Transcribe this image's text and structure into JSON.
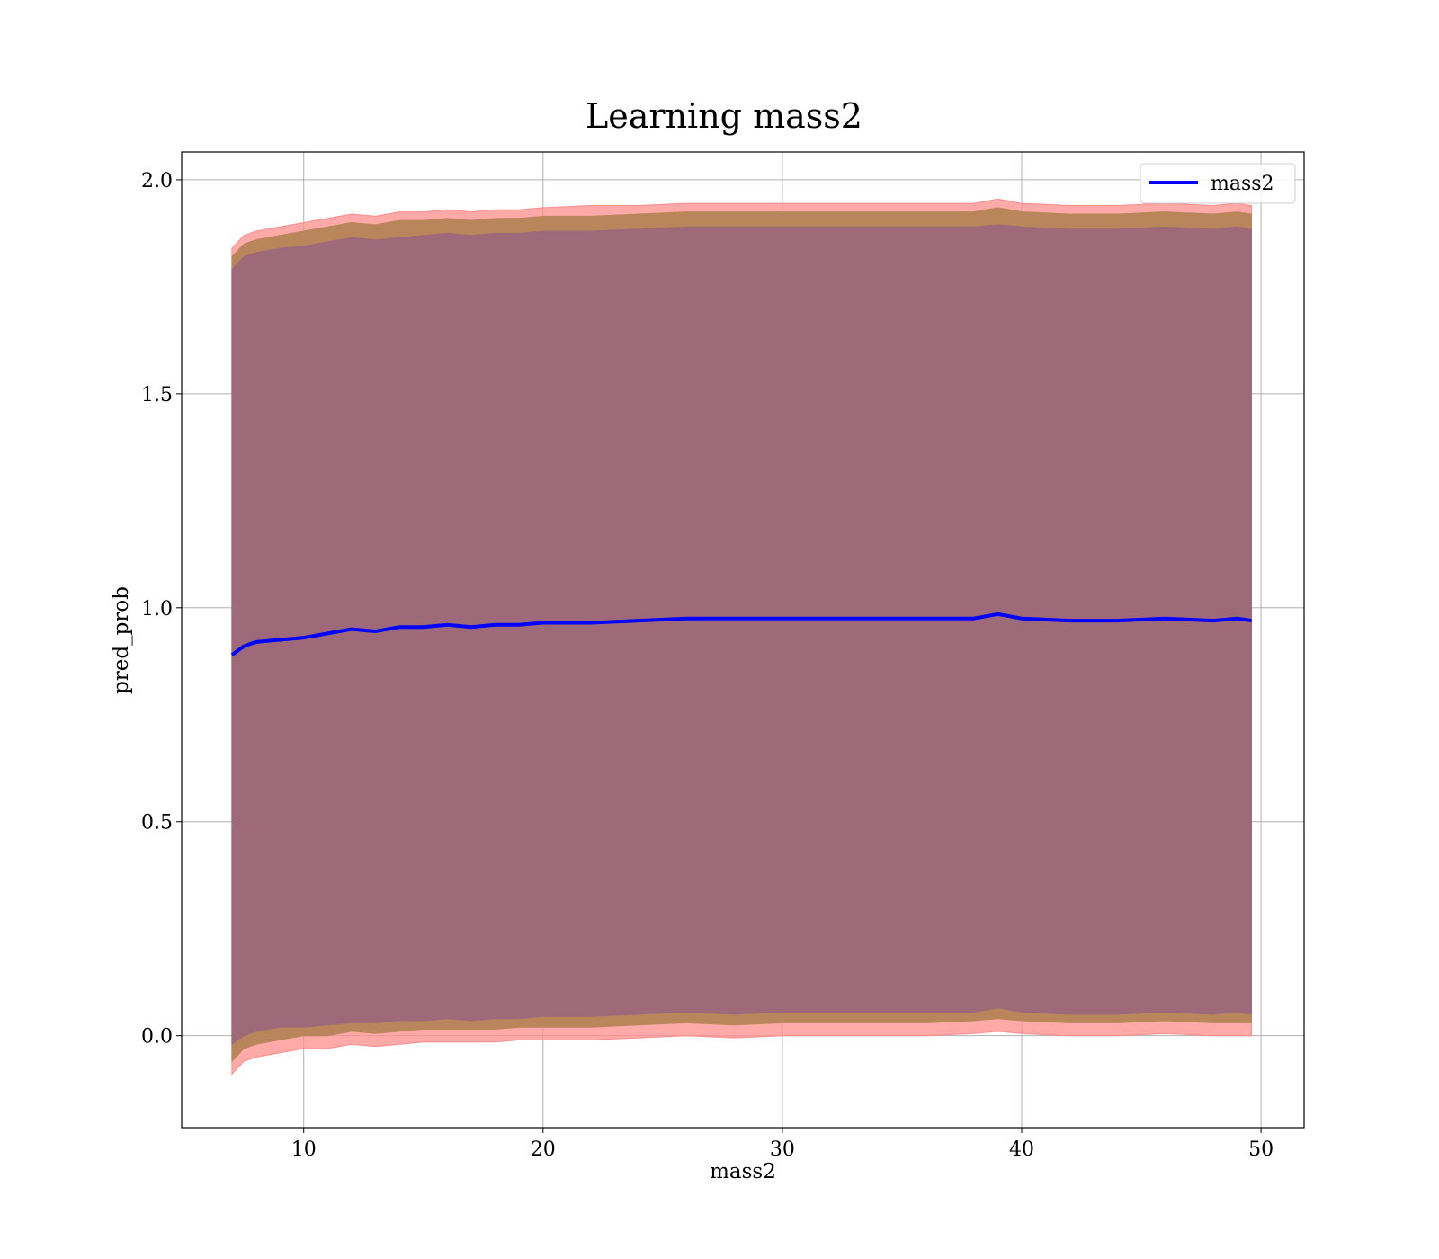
{
  "chart_data": {
    "type": "line",
    "title": "Learning mass2",
    "xlabel": "mass2",
    "ylabel": "pred_prob",
    "xlim": [
      4.9,
      51.8
    ],
    "ylim": [
      -0.215,
      2.065
    ],
    "xticks": [
      10,
      20,
      30,
      40,
      50
    ],
    "xtick_labels": [
      "10",
      "20",
      "30",
      "40",
      "50"
    ],
    "yticks": [
      0.0,
      0.5,
      1.0,
      1.5,
      2.0
    ],
    "ytick_labels": [
      "0.0",
      "0.5",
      "1.0",
      "1.5",
      "2.0"
    ],
    "grid": true,
    "legend": {
      "placement": "upper right",
      "entries": [
        "mass2"
      ]
    },
    "x": [
      7.0,
      7.5,
      8.0,
      9.0,
      10.0,
      11.0,
      12.0,
      13.0,
      14.0,
      15.0,
      16.0,
      17.0,
      18.0,
      19.0,
      20.0,
      22.0,
      24.0,
      26.0,
      28.0,
      30.0,
      32.0,
      34.0,
      36.0,
      38.0,
      39.0,
      40.0,
      42.0,
      44.0,
      46.0,
      48.0,
      49.0,
      49.6
    ],
    "series": [
      {
        "name": "mass2",
        "color": "#0000ff",
        "values": [
          0.89,
          0.91,
          0.92,
          0.925,
          0.93,
          0.94,
          0.95,
          0.945,
          0.955,
          0.955,
          0.96,
          0.955,
          0.96,
          0.96,
          0.965,
          0.965,
          0.97,
          0.975,
          0.975,
          0.975,
          0.975,
          0.975,
          0.975,
          0.975,
          0.985,
          0.975,
          0.97,
          0.97,
          0.975,
          0.97,
          0.975,
          0.97
        ]
      }
    ],
    "bands": [
      {
        "name": "outer band",
        "color": "#ff8c8c",
        "lower": [
          -0.09,
          -0.06,
          -0.05,
          -0.04,
          -0.03,
          -0.03,
          -0.02,
          -0.025,
          -0.02,
          -0.015,
          -0.015,
          -0.015,
          -0.015,
          -0.01,
          -0.01,
          -0.01,
          -0.005,
          0.0,
          -0.005,
          0.0,
          0.0,
          0.0,
          0.0,
          0.005,
          0.01,
          0.005,
          0.0,
          0.0,
          0.005,
          0.0,
          0.0,
          0.0
        ],
        "upper": [
          1.84,
          1.87,
          1.88,
          1.89,
          1.9,
          1.91,
          1.92,
          1.915,
          1.925,
          1.925,
          1.93,
          1.925,
          1.93,
          1.93,
          1.935,
          1.94,
          1.94,
          1.945,
          1.945,
          1.945,
          1.945,
          1.945,
          1.945,
          1.945,
          1.955,
          1.945,
          1.94,
          1.94,
          1.945,
          1.94,
          1.945,
          1.94
        ]
      },
      {
        "name": "middle band",
        "color": "#b8865a",
        "lower": [
          -0.06,
          -0.03,
          -0.02,
          -0.01,
          0.0,
          0.0,
          0.01,
          0.005,
          0.01,
          0.015,
          0.015,
          0.015,
          0.015,
          0.02,
          0.02,
          0.02,
          0.025,
          0.03,
          0.025,
          0.03,
          0.03,
          0.03,
          0.03,
          0.035,
          0.04,
          0.035,
          0.03,
          0.03,
          0.035,
          0.03,
          0.03,
          0.03
        ],
        "upper": [
          1.82,
          1.85,
          1.86,
          1.87,
          1.88,
          1.89,
          1.9,
          1.895,
          1.905,
          1.905,
          1.91,
          1.905,
          1.91,
          1.91,
          1.915,
          1.915,
          1.92,
          1.925,
          1.925,
          1.925,
          1.925,
          1.925,
          1.925,
          1.925,
          1.935,
          1.925,
          1.92,
          1.92,
          1.925,
          1.92,
          1.925,
          1.92
        ]
      },
      {
        "name": "inner band",
        "color": "#9e6a7a",
        "lower": [
          -0.02,
          0.0,
          0.01,
          0.02,
          0.02,
          0.025,
          0.03,
          0.03,
          0.035,
          0.035,
          0.04,
          0.035,
          0.04,
          0.04,
          0.045,
          0.045,
          0.05,
          0.055,
          0.05,
          0.055,
          0.055,
          0.055,
          0.055,
          0.055,
          0.065,
          0.055,
          0.05,
          0.05,
          0.055,
          0.05,
          0.055,
          0.05
        ],
        "upper": [
          1.79,
          1.82,
          1.83,
          1.84,
          1.845,
          1.855,
          1.865,
          1.86,
          1.865,
          1.87,
          1.875,
          1.87,
          1.875,
          1.875,
          1.88,
          1.88,
          1.885,
          1.89,
          1.89,
          1.89,
          1.89,
          1.89,
          1.89,
          1.89,
          1.895,
          1.89,
          1.885,
          1.885,
          1.89,
          1.885,
          1.89,
          1.885
        ]
      }
    ]
  }
}
